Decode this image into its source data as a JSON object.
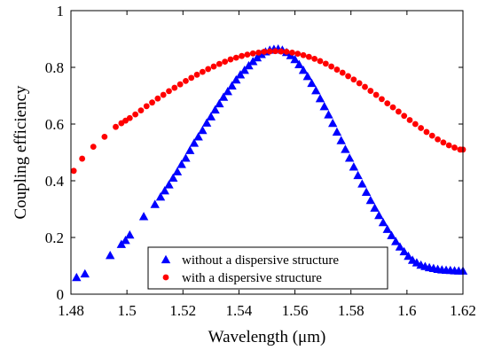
{
  "chart_data": {
    "type": "scatter",
    "xlabel": "Wavelength (μm)",
    "ylabel": "Coupling efficiency",
    "xlim": [
      1.48,
      1.62
    ],
    "ylim": [
      0,
      1
    ],
    "xticks": [
      1.48,
      1.5,
      1.52,
      1.54,
      1.56,
      1.58,
      1.6,
      1.62
    ],
    "yticks": [
      0,
      0.2,
      0.4,
      0.6,
      0.8,
      1
    ],
    "xtick_labels": [
      "1.48",
      "1.5",
      "1.52",
      "1.54",
      "1.56",
      "1.58",
      "1.6",
      "1.62"
    ],
    "ytick_labels": [
      "0",
      "0.2",
      "0.4",
      "0.6",
      "0.8",
      "1"
    ],
    "grid": false,
    "legend_position": "bottom-center",
    "series": [
      {
        "name": "without a dispersive structure",
        "marker": "triangle",
        "color": "#0000ff",
        "x": [
          1.482,
          1.485,
          1.494,
          1.498,
          1.4995,
          1.501,
          1.506,
          1.51,
          1.512,
          1.5135,
          1.515,
          1.5165,
          1.518,
          1.5195,
          1.521,
          1.5225,
          1.524,
          1.5255,
          1.527,
          1.5285,
          1.53,
          1.5315,
          1.533,
          1.5345,
          1.536,
          1.5375,
          1.539,
          1.5405,
          1.542,
          1.5435,
          1.545,
          1.5465,
          1.548,
          1.5495,
          1.551,
          1.5525,
          1.554,
          1.5555,
          1.557,
          1.5585,
          1.56,
          1.5615,
          1.563,
          1.5645,
          1.566,
          1.5675,
          1.569,
          1.5705,
          1.572,
          1.5735,
          1.575,
          1.5765,
          1.578,
          1.5795,
          1.581,
          1.5825,
          1.584,
          1.5855,
          1.587,
          1.5885,
          1.59,
          1.5915,
          1.593,
          1.5945,
          1.596,
          1.5975,
          1.599,
          1.6005,
          1.602,
          1.6035,
          1.605,
          1.6065,
          1.608,
          1.6095,
          1.611,
          1.6125,
          1.614,
          1.6155,
          1.617,
          1.6185,
          1.62
        ],
        "y": [
          0.059,
          0.072,
          0.137,
          0.176,
          0.19,
          0.209,
          0.274,
          0.317,
          0.343,
          0.365,
          0.386,
          0.41,
          0.432,
          0.458,
          0.48,
          0.507,
          0.533,
          0.555,
          0.578,
          0.604,
          0.626,
          0.65,
          0.672,
          0.695,
          0.715,
          0.735,
          0.756,
          0.774,
          0.79,
          0.806,
          0.821,
          0.834,
          0.846,
          0.855,
          0.861,
          0.864,
          0.865,
          0.861,
          0.853,
          0.842,
          0.828,
          0.81,
          0.79,
          0.768,
          0.744,
          0.718,
          0.69,
          0.662,
          0.633,
          0.603,
          0.572,
          0.542,
          0.511,
          0.48,
          0.449,
          0.419,
          0.389,
          0.36,
          0.331,
          0.304,
          0.278,
          0.253,
          0.229,
          0.207,
          0.186,
          0.167,
          0.15,
          0.134,
          0.12,
          0.111,
          0.103,
          0.098,
          0.094,
          0.091,
          0.088,
          0.086,
          0.085,
          0.084,
          0.083,
          0.082,
          0.082
        ]
      },
      {
        "name": "with a dispersive structure",
        "marker": "circle",
        "color": "#ff0000",
        "x": [
          1.481,
          1.484,
          1.488,
          1.492,
          1.496,
          1.498,
          1.4995,
          1.501,
          1.503,
          1.505,
          1.507,
          1.509,
          1.511,
          1.513,
          1.515,
          1.517,
          1.519,
          1.521,
          1.523,
          1.525,
          1.527,
          1.529,
          1.531,
          1.533,
          1.535,
          1.537,
          1.539,
          1.541,
          1.543,
          1.545,
          1.547,
          1.549,
          1.551,
          1.553,
          1.555,
          1.557,
          1.559,
          1.561,
          1.563,
          1.565,
          1.567,
          1.569,
          1.571,
          1.573,
          1.575,
          1.577,
          1.579,
          1.581,
          1.583,
          1.585,
          1.587,
          1.589,
          1.591,
          1.593,
          1.595,
          1.597,
          1.599,
          1.601,
          1.603,
          1.605,
          1.607,
          1.609,
          1.611,
          1.613,
          1.615,
          1.617,
          1.619,
          1.62
        ],
        "y": [
          0.435,
          0.478,
          0.52,
          0.555,
          0.59,
          0.603,
          0.612,
          0.621,
          0.634,
          0.648,
          0.663,
          0.676,
          0.69,
          0.703,
          0.716,
          0.728,
          0.74,
          0.752,
          0.763,
          0.774,
          0.784,
          0.794,
          0.803,
          0.812,
          0.82,
          0.828,
          0.834,
          0.84,
          0.845,
          0.849,
          0.852,
          0.855,
          0.856,
          0.857,
          0.856,
          0.855,
          0.852,
          0.848,
          0.843,
          0.837,
          0.83,
          0.822,
          0.813,
          0.803,
          0.792,
          0.781,
          0.769,
          0.757,
          0.744,
          0.731,
          0.717,
          0.703,
          0.688,
          0.673,
          0.659,
          0.644,
          0.629,
          0.614,
          0.6,
          0.586,
          0.572,
          0.559,
          0.546,
          0.535,
          0.525,
          0.517,
          0.51,
          0.51
        ]
      }
    ]
  }
}
